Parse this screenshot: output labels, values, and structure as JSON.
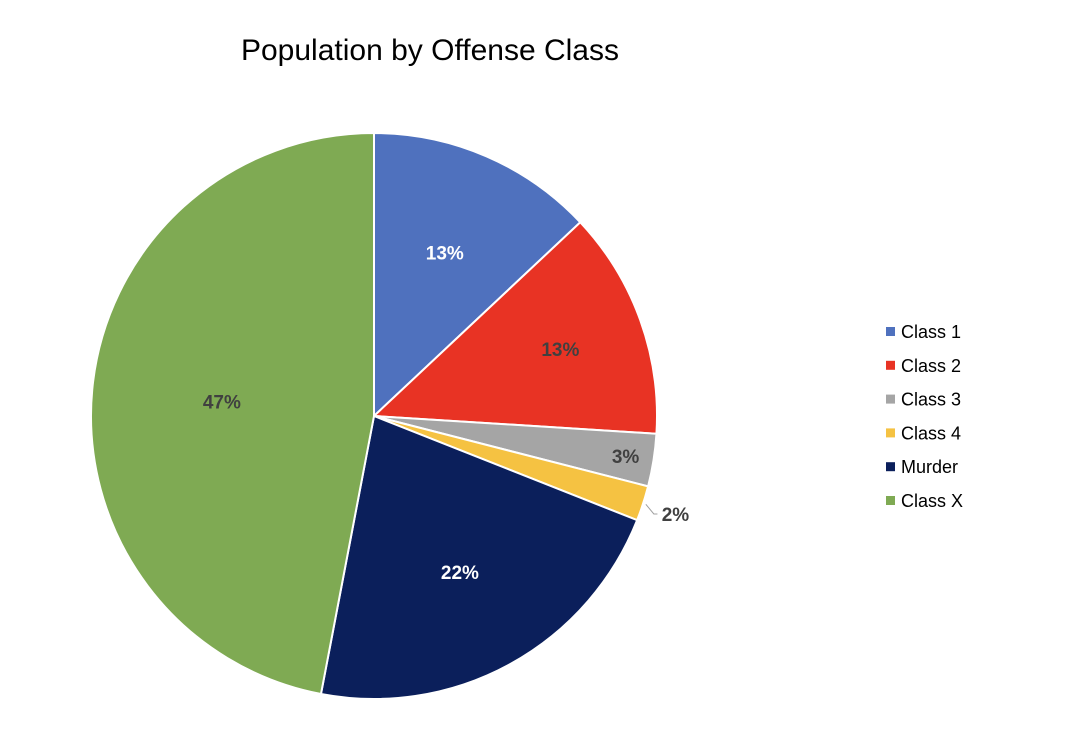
{
  "chart_data": {
    "type": "pie",
    "title": "Population by Offense Class",
    "categories": [
      "Class 1",
      "Class 2",
      "Class 3",
      "Class 4",
      "Murder",
      "Class X"
    ],
    "values": [
      13,
      13,
      3,
      2,
      22,
      47
    ],
    "labels": [
      "13%",
      "13%",
      "3%",
      "2%",
      "22%",
      "47%"
    ],
    "colors": [
      "#4f71be",
      "#e83324",
      "#a5a5a5",
      "#f5c242",
      "#0b1f5b",
      "#7faa53"
    ],
    "label_colors": [
      "#ffffff",
      "#404040",
      "#404040",
      "#404040",
      "#ffffff",
      "#404040"
    ],
    "legend_position": "right",
    "start_angle": "12 o'clock",
    "direction": "clockwise"
  }
}
